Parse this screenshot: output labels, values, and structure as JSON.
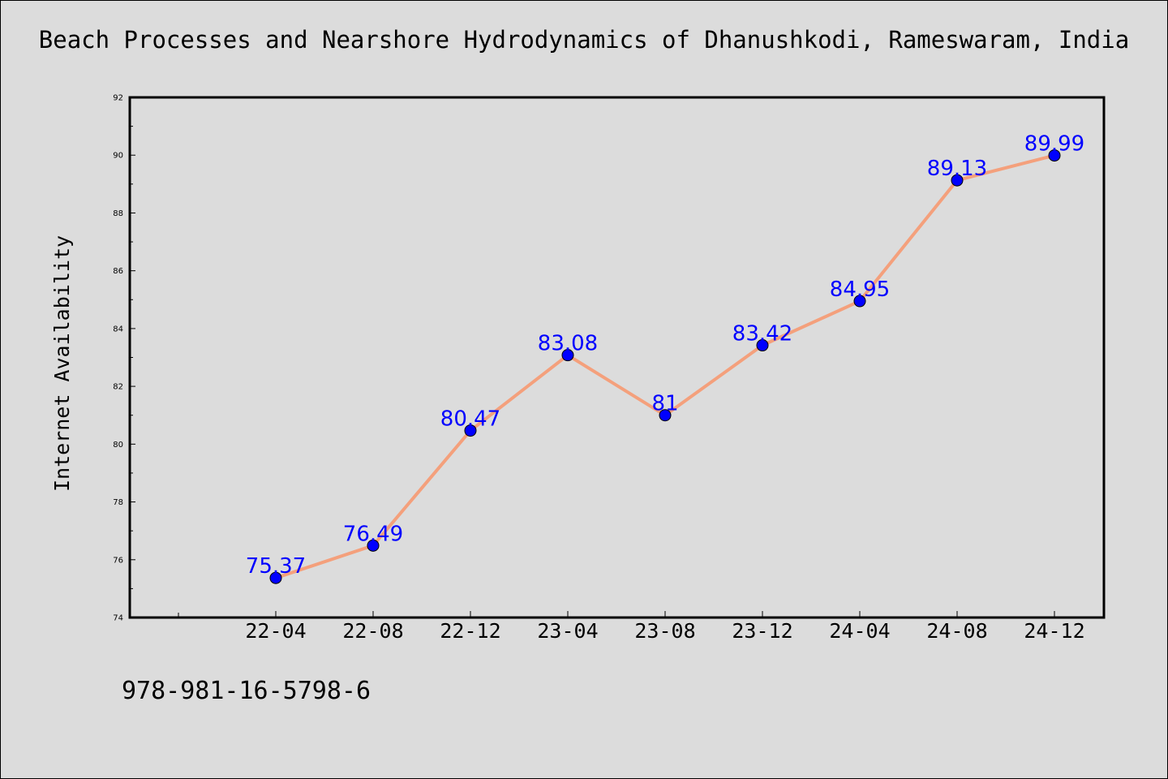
{
  "title": "Beach Processes and Nearshore Hydrodynamics of Dhanushkodi, Rameswaram, India",
  "footer_text": "978-981-16-5798-6",
  "chart_data": {
    "type": "line",
    "categories": [
      "22-04",
      "22-08",
      "22-12",
      "23-04",
      "23-08",
      "23-12",
      "24-04",
      "24-08",
      "24-12"
    ],
    "values": [
      75.37,
      76.49,
      80.47,
      83.08,
      81,
      83.42,
      84.95,
      89.13,
      89.99
    ],
    "data_labels": [
      "75.37",
      "76.49",
      "80.47",
      "83.08",
      "81",
      "83.42",
      "84.95",
      "89.13",
      "89.99"
    ],
    "ylabel": "Internet Availability",
    "xlabel": "",
    "ylim": [
      74,
      92
    ],
    "yticks": [
      74,
      76,
      78,
      80,
      82,
      84,
      86,
      88,
      90,
      92
    ],
    "line_color": "#f4a07c",
    "marker_color": "#0000ff",
    "label_color": "#0000ff",
    "grid": false,
    "legend": "none"
  }
}
